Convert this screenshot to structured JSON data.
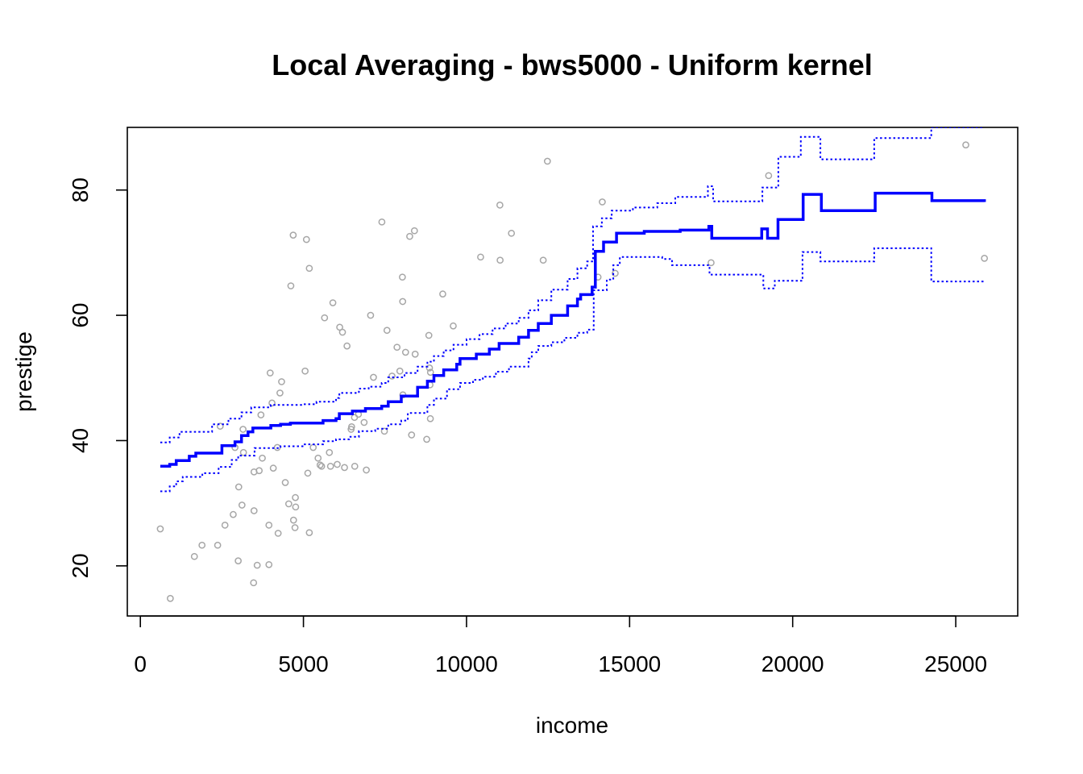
{
  "chart_data": {
    "type": "scatter",
    "title": "Local Averaging - bws5000 - Uniform kernel",
    "xlabel": "income",
    "ylabel": "prestige",
    "xlim": [
      -400,
      26900
    ],
    "ylim": [
      12,
      90
    ],
    "xticks": [
      0,
      5000,
      10000,
      15000,
      20000,
      25000
    ],
    "yticks": [
      20,
      40,
      60,
      80
    ],
    "grid": false,
    "colors": {
      "points": "#a6a6a6",
      "fit": "#0000ff",
      "band": "#0000ff",
      "axes": "#000000"
    },
    "series": [
      {
        "type": "scatter",
        "marker": "open-circle",
        "points": [
          [
            611,
            25.9
          ],
          [
            918,
            14.8
          ],
          [
            1656,
            21.5
          ],
          [
            1890,
            23.3
          ],
          [
            2370,
            23.3
          ],
          [
            2448,
            42.3
          ],
          [
            2594,
            26.5
          ],
          [
            2847,
            28.2
          ],
          [
            2901,
            38.9
          ],
          [
            3000,
            20.8
          ],
          [
            3016,
            32.6
          ],
          [
            3116,
            29.7
          ],
          [
            3148,
            41.8
          ],
          [
            3161,
            38.1
          ],
          [
            3485,
            35.0
          ],
          [
            3472,
            17.3
          ],
          [
            3485,
            28.8
          ],
          [
            3582,
            20.1
          ],
          [
            3643,
            35.2
          ],
          [
            3697,
            44.1
          ],
          [
            3739,
            37.2
          ],
          [
            3942,
            20.2
          ],
          [
            3942,
            26.5
          ],
          [
            3980,
            50.8
          ],
          [
            4036,
            46.0
          ],
          [
            4075,
            35.6
          ],
          [
            4199,
            38.9
          ],
          [
            4224,
            25.2
          ],
          [
            4280,
            47.6
          ],
          [
            4330,
            49.4
          ],
          [
            4443,
            33.3
          ],
          [
            4549,
            29.9
          ],
          [
            4614,
            64.7
          ],
          [
            4686,
            72.8
          ],
          [
            4696,
            27.3
          ],
          [
            4741,
            26.1
          ],
          [
            4753,
            30.9
          ],
          [
            4761,
            29.4
          ],
          [
            5051,
            51.1
          ],
          [
            5092,
            72.1
          ],
          [
            5180,
            25.3
          ],
          [
            5134,
            34.8
          ],
          [
            5180,
            67.5
          ],
          [
            5299,
            38.9
          ],
          [
            5449,
            37.2
          ],
          [
            5511,
            36.1
          ],
          [
            5557,
            35.9
          ],
          [
            5648,
            59.6
          ],
          [
            5795,
            38.1
          ],
          [
            5830,
            35.9
          ],
          [
            5902,
            62.0
          ],
          [
            6036,
            36.2
          ],
          [
            6112,
            58.1
          ],
          [
            6197,
            57.3
          ],
          [
            6259,
            35.7
          ],
          [
            6336,
            55.1
          ],
          [
            6462,
            41.8
          ],
          [
            6477,
            42.2
          ],
          [
            6565,
            43.7
          ],
          [
            6573,
            35.9
          ],
          [
            6686,
            44.2
          ],
          [
            6928,
            35.3
          ],
          [
            6860,
            42.9
          ],
          [
            7059,
            60.0
          ],
          [
            7147,
            50.1
          ],
          [
            7405,
            74.9
          ],
          [
            7482,
            41.5
          ],
          [
            7562,
            57.6
          ],
          [
            7716,
            50.3
          ],
          [
            7869,
            54.9
          ],
          [
            7956,
            51.1
          ],
          [
            8034,
            66.1
          ],
          [
            8043,
            62.2
          ],
          [
            8049,
            47.3
          ],
          [
            8131,
            54.1
          ],
          [
            8258,
            72.6
          ],
          [
            8316,
            40.9
          ],
          [
            8403,
            73.5
          ],
          [
            8425,
            53.8
          ],
          [
            8780,
            40.2
          ],
          [
            8845,
            56.8
          ],
          [
            8865,
            51.6
          ],
          [
            8895,
            50.9
          ],
          [
            8880,
            48.9
          ],
          [
            8891,
            43.5
          ],
          [
            9593,
            58.3
          ],
          [
            9271,
            63.4
          ],
          [
            10432,
            69.3
          ],
          [
            11023,
            77.6
          ],
          [
            11030,
            68.8
          ],
          [
            11377,
            73.1
          ],
          [
            12351,
            68.8
          ],
          [
            12480,
            84.6
          ],
          [
            14163,
            78.1
          ],
          [
            14032,
            66.1
          ],
          [
            14558,
            66.7
          ],
          [
            17498,
            68.4
          ],
          [
            19263,
            82.3
          ],
          [
            25308,
            87.2
          ],
          [
            25879,
            69.1
          ]
        ]
      },
      {
        "type": "step",
        "linestyle": "solid",
        "points": [
          [
            611,
            35.9
          ],
          [
            900,
            36.2
          ],
          [
            1100,
            36.8
          ],
          [
            1500,
            37.5
          ],
          [
            1700,
            38.0
          ],
          [
            2000,
            38.0
          ],
          [
            2500,
            39.2
          ],
          [
            2900,
            39.8
          ],
          [
            3100,
            40.8
          ],
          [
            3300,
            41.4
          ],
          [
            3450,
            42.0
          ],
          [
            4000,
            42.4
          ],
          [
            4300,
            42.6
          ],
          [
            4600,
            42.8
          ],
          [
            5200,
            42.8
          ],
          [
            5600,
            43.2
          ],
          [
            6000,
            43.5
          ],
          [
            6100,
            44.3
          ],
          [
            6500,
            44.7
          ],
          [
            6900,
            45.1
          ],
          [
            7400,
            45.5
          ],
          [
            7600,
            46.2
          ],
          [
            8000,
            47.1
          ],
          [
            8500,
            48.5
          ],
          [
            8800,
            49.5
          ],
          [
            9000,
            50.4
          ],
          [
            9300,
            51.3
          ],
          [
            9700,
            52.2
          ],
          [
            9800,
            53.1
          ],
          [
            10300,
            53.8
          ],
          [
            10700,
            54.6
          ],
          [
            11000,
            55.5
          ],
          [
            11600,
            56.5
          ],
          [
            11900,
            57.6
          ],
          [
            12200,
            58.7
          ],
          [
            12600,
            60.0
          ],
          [
            13100,
            61.5
          ],
          [
            13400,
            62.6
          ],
          [
            13500,
            63.3
          ],
          [
            13850,
            64.5
          ],
          [
            13950,
            70.2
          ],
          [
            14200,
            71.7
          ],
          [
            14600,
            73.1
          ],
          [
            15450,
            73.4
          ],
          [
            16550,
            73.6
          ],
          [
            17430,
            74.2
          ],
          [
            17520,
            72.3
          ],
          [
            19050,
            73.8
          ],
          [
            19230,
            72.3
          ],
          [
            19550,
            75.3
          ],
          [
            20320,
            79.3
          ],
          [
            20880,
            76.7
          ],
          [
            22530,
            79.5
          ],
          [
            24270,
            78.3
          ],
          [
            25880,
            78.1
          ]
        ]
      },
      {
        "type": "step",
        "linestyle": "dotted",
        "points": [
          [
            611,
            39.7
          ],
          [
            900,
            40.5
          ],
          [
            1200,
            41.4
          ],
          [
            2200,
            42.6
          ],
          [
            2700,
            43.5
          ],
          [
            3100,
            44.5
          ],
          [
            3400,
            45.3
          ],
          [
            4000,
            45.7
          ],
          [
            5000,
            45.8
          ],
          [
            5400,
            46.2
          ],
          [
            6000,
            46.8
          ],
          [
            6100,
            47.6
          ],
          [
            6700,
            48.3
          ],
          [
            7000,
            48.6
          ],
          [
            7400,
            49.2
          ],
          [
            7600,
            50.1
          ],
          [
            8100,
            50.8
          ],
          [
            8500,
            51.8
          ],
          [
            8800,
            52.6
          ],
          [
            9000,
            53.5
          ],
          [
            9300,
            54.4
          ],
          [
            9600,
            55.3
          ],
          [
            10000,
            56.2
          ],
          [
            10400,
            57.0
          ],
          [
            10800,
            57.9
          ],
          [
            11200,
            58.7
          ],
          [
            11600,
            59.6
          ],
          [
            11900,
            60.8
          ],
          [
            12200,
            62.4
          ],
          [
            12600,
            64.1
          ],
          [
            13100,
            65.8
          ],
          [
            13400,
            67.5
          ],
          [
            13700,
            68.6
          ],
          [
            13880,
            74.2
          ],
          [
            14150,
            75.5
          ],
          [
            14450,
            76.7
          ],
          [
            15100,
            77.2
          ],
          [
            15850,
            77.9
          ],
          [
            16400,
            78.9
          ],
          [
            17400,
            80.6
          ],
          [
            17560,
            78.2
          ],
          [
            19030,
            78.2
          ],
          [
            19070,
            80.4
          ],
          [
            19560,
            85.3
          ],
          [
            20250,
            88.5
          ],
          [
            20850,
            84.9
          ],
          [
            22500,
            88.3
          ],
          [
            24250,
            90.0
          ],
          [
            25880,
            90.0
          ]
        ]
      },
      {
        "type": "step",
        "linestyle": "dotted",
        "points": [
          [
            611,
            31.9
          ],
          [
            900,
            32.7
          ],
          [
            1100,
            33.5
          ],
          [
            1300,
            34.2
          ],
          [
            1900,
            34.8
          ],
          [
            2400,
            35.8
          ],
          [
            2800,
            36.9
          ],
          [
            3000,
            37.6
          ],
          [
            3500,
            38.8
          ],
          [
            4300,
            39.1
          ],
          [
            5000,
            39.4
          ],
          [
            5600,
            39.9
          ],
          [
            6000,
            40.2
          ],
          [
            6400,
            40.6
          ],
          [
            6700,
            41.5
          ],
          [
            7200,
            41.9
          ],
          [
            7600,
            42.6
          ],
          [
            8000,
            43.2
          ],
          [
            8200,
            44.4
          ],
          [
            8800,
            45.7
          ],
          [
            9000,
            46.7
          ],
          [
            9400,
            48.2
          ],
          [
            9800,
            49.2
          ],
          [
            10200,
            49.7
          ],
          [
            10500,
            50.2
          ],
          [
            10900,
            51.0
          ],
          [
            11300,
            51.8
          ],
          [
            11900,
            53.1
          ],
          [
            12000,
            54.1
          ],
          [
            12200,
            55.1
          ],
          [
            12600,
            55.7
          ],
          [
            13000,
            56.4
          ],
          [
            13400,
            57.2
          ],
          [
            13700,
            57.7
          ],
          [
            13900,
            64.0
          ],
          [
            14300,
            65.7
          ],
          [
            14500,
            68.0
          ],
          [
            14700,
            69.3
          ],
          [
            16000,
            69.0
          ],
          [
            16300,
            68.0
          ],
          [
            17450,
            66.5
          ],
          [
            19100,
            64.3
          ],
          [
            19450,
            65.5
          ],
          [
            20300,
            70.1
          ],
          [
            20850,
            68.6
          ],
          [
            22500,
            70.7
          ],
          [
            24250,
            65.4
          ],
          [
            25880,
            65.4
          ]
        ]
      }
    ]
  }
}
